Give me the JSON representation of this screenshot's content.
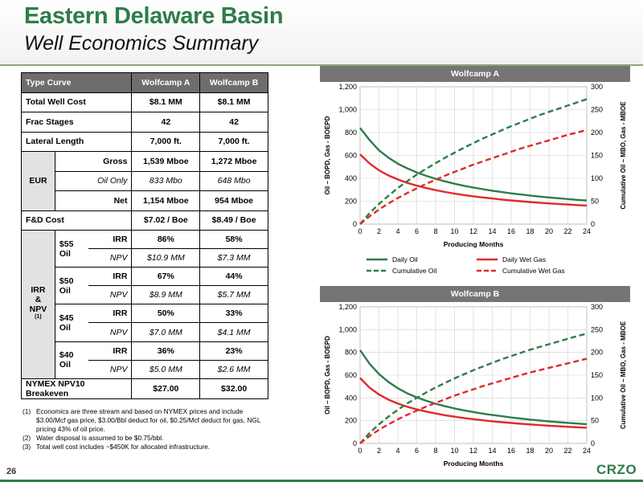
{
  "header": {
    "title": "Eastern Delaware Basin",
    "subtitle": "Well Economics Summary"
  },
  "table": {
    "col_type": "Type Curve",
    "col_a": "Wolfcamp A",
    "col_b": "Wolfcamp B",
    "total_cost": {
      "label": "Total Well Cost",
      "a": "$8.1 MM",
      "b": "$8.1 MM"
    },
    "frac": {
      "label": "Frac Stages",
      "a": "42",
      "b": "42"
    },
    "lateral": {
      "label": "Lateral Length",
      "a": "7,000 ft.",
      "b": "7,000 ft."
    },
    "eur": {
      "label": "EUR",
      "gross_label": "Gross",
      "gross_a": "1,539 Mboe",
      "gross_b": "1,272 Mboe",
      "oil_label": "Oil Only",
      "oil_a": "833 Mbo",
      "oil_b": "648 Mbo",
      "net_label": "Net",
      "net_a": "1,154 Mboe",
      "net_b": "954 Mboe"
    },
    "fd": {
      "label": "F&D Cost",
      "a": "$7.02 / Boe",
      "b": "$8.49 / Boe"
    },
    "irr_block": {
      "line1": "IRR",
      "line2": "&",
      "line3": "NPV",
      "sup": "(1)"
    },
    "irr_label": "IRR",
    "npv_label": "NPV",
    "scenarios": [
      {
        "oil": "$55 Oil",
        "irr_a": "86%",
        "irr_b": "58%",
        "npv_a": "$10.9 MM",
        "npv_b": "$7.3 MM"
      },
      {
        "oil": "$50 Oil",
        "irr_a": "67%",
        "irr_b": "44%",
        "npv_a": "$8.9 MM",
        "npv_b": "$5.7 MM"
      },
      {
        "oil": "$45 Oil",
        "irr_a": "50%",
        "irr_b": "33%",
        "npv_a": "$7.0 MM",
        "npv_b": "$4.1 MM"
      },
      {
        "oil": "$40 Oil",
        "irr_a": "36%",
        "irr_b": "23%",
        "npv_a": "$5.0 MM",
        "npv_b": "$2.6 MM"
      }
    ],
    "breakeven": {
      "label": "NYMEX NPV10 Breakeven",
      "a": "$27.00",
      "b": "$32.00"
    }
  },
  "footnotes": [
    {
      "num": "(1)",
      "text": "Economics are three stream and based on NYMEX prices and include $3.00/Mcf gas price, $3.00/Bbl deduct for oil, $0.25/Mcf deduct for gas, NGL pricing 43% of oil price."
    },
    {
      "num": "(2)",
      "text": "Water disposal is assumed to be $0.75/bbl."
    },
    {
      "num": "(3)",
      "text": "Total well cost includes ~$450K for allocated infrastructure."
    }
  ],
  "page_number": "26",
  "logo_text": "CRZO",
  "colors": {
    "green": "#2e7d4a",
    "red": "#e02a2a",
    "banner": "#757575"
  },
  "chart_data": [
    {
      "type": "line",
      "title": "Wolfcamp A",
      "xlabel": "Producing Months",
      "ylabel": "Oil – BOPD, Gas - BOEPD",
      "y2label": "Cumulative Oil – MBO, Gas - MBOE",
      "xlim": [
        0,
        24
      ],
      "ylim": [
        0,
        1200
      ],
      "y2lim": [
        0,
        300
      ],
      "xticks": [
        0,
        2,
        4,
        6,
        8,
        10,
        12,
        14,
        16,
        18,
        20,
        22,
        24
      ],
      "yticks": [
        "0",
        "200",
        "400",
        "600",
        "800",
        "1,000",
        "1,200"
      ],
      "y2ticks": [
        "0",
        "50",
        "100",
        "150",
        "200",
        "250",
        "300"
      ],
      "x": [
        0,
        1,
        2,
        3,
        4,
        5,
        6,
        7,
        8,
        9,
        10,
        11,
        12,
        13,
        14,
        15,
        16,
        17,
        18,
        19,
        20,
        21,
        22,
        23,
        24
      ],
      "series": [
        {
          "name": "Daily Oil",
          "axis": "left",
          "dash": false,
          "color": "#2e7d4a",
          "values": [
            840,
            735,
            645,
            580,
            528,
            487,
            452,
            422,
            396,
            373,
            353,
            335,
            319,
            305,
            292,
            280,
            269,
            259,
            250,
            241,
            233,
            226,
            219,
            212,
            206
          ]
        },
        {
          "name": "Daily Wet Gas",
          "axis": "left",
          "dash": false,
          "color": "#e02a2a",
          "values": [
            610,
            530,
            470,
            425,
            390,
            360,
            336,
            315,
            297,
            281,
            267,
            254,
            243,
            233,
            224,
            215,
            207,
            200,
            193,
            187,
            181,
            176,
            171,
            166,
            162
          ]
        },
        {
          "name": "Cumulative Oil",
          "axis": "right",
          "dash": true,
          "color": "#2e7d4a",
          "values": [
            0,
            24,
            44,
            62,
            79,
            94,
            108,
            121,
            133,
            145,
            156,
            167,
            177,
            187,
            196,
            205,
            214,
            222,
            230,
            238,
            245,
            252,
            259,
            266,
            273
          ]
        },
        {
          "name": "Cumulative Wet Gas",
          "axis": "right",
          "dash": true,
          "color": "#e02a2a",
          "values": [
            0,
            17,
            32,
            45,
            57,
            68,
            78,
            88,
            97,
            106,
            114,
            122,
            130,
            137,
            144,
            151,
            158,
            165,
            171,
            177,
            183,
            189,
            195,
            200,
            206
          ]
        }
      ],
      "legend": "bottom"
    },
    {
      "type": "line",
      "title": "Wolfcamp B",
      "xlabel": "Producing Months",
      "ylabel": "Oil – BOPD, Gas - BOEPD",
      "y2label": "Cumulative Oil – MBO, Gas - MBOE",
      "xlim": [
        0,
        24
      ],
      "ylim": [
        0,
        1200
      ],
      "y2lim": [
        0,
        300
      ],
      "xticks": [
        0,
        2,
        4,
        6,
        8,
        10,
        12,
        14,
        16,
        18,
        20,
        22,
        24
      ],
      "yticks": [
        "0",
        "200",
        "400",
        "600",
        "800",
        "1,000",
        "1,200"
      ],
      "y2ticks": [
        "0",
        "50",
        "100",
        "150",
        "200",
        "250",
        "300"
      ],
      "x": [
        0,
        1,
        2,
        3,
        4,
        5,
        6,
        7,
        8,
        9,
        10,
        11,
        12,
        13,
        14,
        15,
        16,
        17,
        18,
        19,
        20,
        21,
        22,
        23,
        24
      ],
      "series": [
        {
          "name": "Daily Oil",
          "axis": "left",
          "dash": false,
          "color": "#2e7d4a",
          "values": [
            820,
            700,
            610,
            540,
            485,
            440,
            405,
            375,
            349,
            327,
            308,
            291,
            276,
            262,
            250,
            239,
            228,
            219,
            210,
            202,
            194,
            187,
            181,
            175,
            169
          ]
        },
        {
          "name": "Daily Wet Gas",
          "axis": "left",
          "dash": false,
          "color": "#e02a2a",
          "values": [
            575,
            490,
            430,
            385,
            350,
            322,
            299,
            280,
            263,
            248,
            235,
            223,
            213,
            203,
            195,
            187,
            180,
            173,
            167,
            161,
            156,
            151,
            146,
            142,
            138
          ]
        },
        {
          "name": "Cumulative Oil",
          "axis": "right",
          "dash": true,
          "color": "#2e7d4a",
          "values": [
            0,
            23,
            42,
            59,
            74,
            88,
            100,
            112,
            123,
            133,
            143,
            152,
            161,
            169,
            177,
            185,
            192,
            199,
            206,
            212,
            218,
            224,
            230,
            236,
            241
          ]
        },
        {
          "name": "Cumulative Wet Gas",
          "axis": "right",
          "dash": true,
          "color": "#e02a2a",
          "values": [
            0,
            16,
            30,
            42,
            53,
            63,
            72,
            81,
            89,
            97,
            105,
            112,
            119,
            126,
            132,
            138,
            144,
            150,
            156,
            161,
            166,
            171,
            176,
            181,
            186
          ]
        }
      ]
    }
  ]
}
